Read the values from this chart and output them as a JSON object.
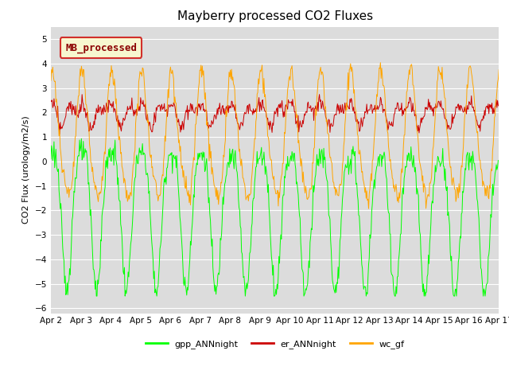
{
  "title": "Mayberry processed CO2 Fluxes",
  "ylabel": "CO2 Flux (urology/m2/s)",
  "xlabel": "",
  "ylim": [
    -6.2,
    5.5
  ],
  "yticks": [
    -6.0,
    -5.0,
    -4.0,
    -3.0,
    -2.0,
    -1.0,
    0.0,
    1.0,
    2.0,
    3.0,
    4.0,
    5.0
  ],
  "xtick_labels": [
    "Apr 2",
    "Apr 3",
    "Apr 4",
    "Apr 5",
    "Apr 6",
    "Apr 7",
    "Apr 8",
    "Apr 9",
    "Apr 10",
    "Apr 11",
    "Apr 12",
    "Apr 13",
    "Apr 14",
    "Apr 15",
    "Apr 16",
    "Apr 17"
  ],
  "gpp_color": "#00ff00",
  "er_color": "#cc0000",
  "wc_color": "#ffa500",
  "legend_label": "MB_processed",
  "legend_facecolor": "#ffffcc",
  "legend_edgecolor": "#cc0000",
  "legend_text_color": "#8b0000",
  "bg_color": "#dcdcdc",
  "title_fontsize": 11,
  "axis_fontsize": 8,
  "tick_fontsize": 7.5,
  "legend_fontsize": 8,
  "bottom_legend_labels": [
    "gpp_ANNnight",
    "er_ANNnight",
    "wc_gf"
  ],
  "bottom_legend_colors": [
    "#00ff00",
    "#cc0000",
    "#ffa500"
  ],
  "n_days": 15,
  "points_per_day": 48
}
